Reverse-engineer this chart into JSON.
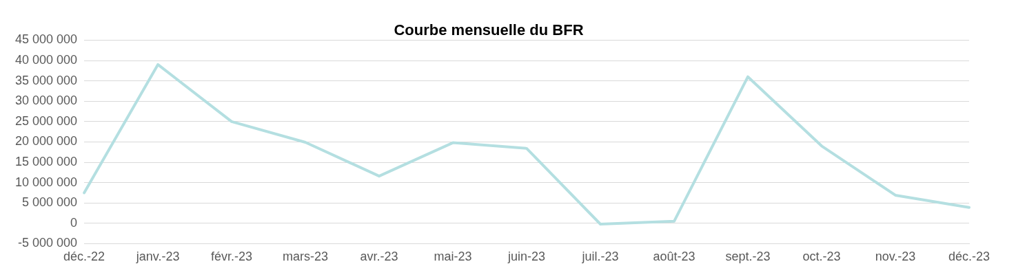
{
  "chart_data": {
    "type": "line",
    "title": "Courbe mensuelle du BFR",
    "categories": [
      "déc.-22",
      "janv.-23",
      "févr.-23",
      "mars-23",
      "avr.-23",
      "mai-23",
      "juin-23",
      "juil.-23",
      "août-23",
      "sept.-23",
      "oct.-23",
      "nov.-23",
      "déc.-23"
    ],
    "series": [
      {
        "color": "#b4dfe1",
        "values": [
          7500000,
          39000000,
          25000000,
          19900000,
          11600000,
          19800000,
          18400000,
          -200000,
          500000,
          36000000,
          19000000,
          6900000,
          3900000
        ]
      }
    ],
    "ylim": [
      -5000000,
      45000000
    ],
    "yticks": [
      {
        "value": -5000000,
        "label": "-5 000 000"
      },
      {
        "value": 0,
        "label": "0"
      },
      {
        "value": 5000000,
        "label": "5 000 000"
      },
      {
        "value": 10000000,
        "label": "10 000 000"
      },
      {
        "value": 15000000,
        "label": "15 000 000"
      },
      {
        "value": 20000000,
        "label": "20 000 000"
      },
      {
        "value": 25000000,
        "label": "25 000 000"
      },
      {
        "value": 30000000,
        "label": "30 000 000"
      },
      {
        "value": 35000000,
        "label": "35 000 000"
      },
      {
        "value": 40000000,
        "label": "40 000 000"
      },
      {
        "value": 45000000,
        "label": "45 000 000"
      }
    ],
    "grid": "y",
    "marker": "none",
    "line_style": "solid"
  }
}
